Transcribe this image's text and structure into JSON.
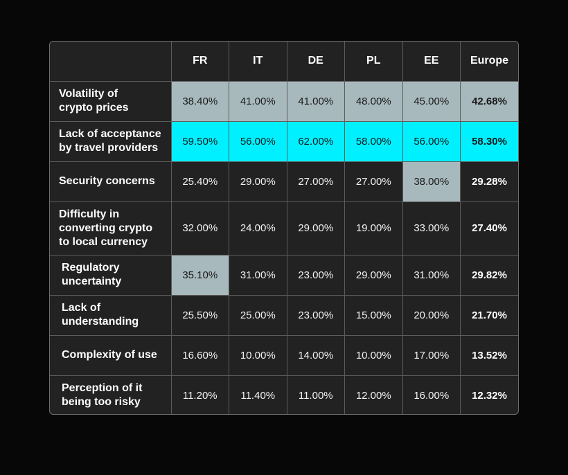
{
  "chart_data": {
    "type": "table",
    "columns": [
      "",
      "FR",
      "IT",
      "DE",
      "PL",
      "EE",
      "Europe"
    ],
    "rows": [
      {
        "label": "Volatility of crypto prices",
        "values": [
          "38.40%",
          "41.00%",
          "41.00%",
          "48.00%",
          "45.00%",
          "42.68%"
        ],
        "highlight": [
          "gray",
          "gray",
          "gray",
          "gray",
          "gray",
          "gray"
        ],
        "indent": false
      },
      {
        "label": "Lack of acceptance by travel providers",
        "values": [
          "59.50%",
          "56.00%",
          "62.00%",
          "58.00%",
          "56.00%",
          "58.30%"
        ],
        "highlight": [
          "cyan",
          "cyan",
          "cyan",
          "cyan",
          "cyan",
          "cyan"
        ],
        "indent": false
      },
      {
        "label": "Security concerns",
        "values": [
          "25.40%",
          "29.00%",
          "27.00%",
          "27.00%",
          "38.00%",
          "29.28%"
        ],
        "highlight": [
          "",
          "",
          "",
          "",
          "gray",
          ""
        ],
        "indent": false
      },
      {
        "label": "Difficulty in converting crypto to local currency",
        "values": [
          "32.00%",
          "24.00%",
          "29.00%",
          "19.00%",
          "33.00%",
          "27.40%"
        ],
        "highlight": [
          "",
          "",
          "",
          "",
          "",
          ""
        ],
        "indent": false
      },
      {
        "label": "Regulatory uncertainty",
        "values": [
          "35.10%",
          "31.00%",
          "23.00%",
          "29.00%",
          "31.00%",
          "29.82%"
        ],
        "highlight": [
          "gray",
          "",
          "",
          "",
          "",
          ""
        ],
        "indent": true
      },
      {
        "label": "Lack of understanding",
        "values": [
          "25.50%",
          "25.00%",
          "23.00%",
          "15.00%",
          "20.00%",
          "21.70%"
        ],
        "highlight": [
          "",
          "",
          "",
          "",
          "",
          ""
        ],
        "indent": true
      },
      {
        "label": "Complexity of use",
        "values": [
          "16.60%",
          "10.00%",
          "14.00%",
          "10.00%",
          "17.00%",
          "13.52%"
        ],
        "highlight": [
          "",
          "",
          "",
          "",
          "",
          ""
        ],
        "indent": true
      },
      {
        "label": "Perception of it being too risky",
        "values": [
          "11.20%",
          "11.40%",
          "11.00%",
          "12.00%",
          "16.00%",
          "12.32%"
        ],
        "highlight": [
          "",
          "",
          "",
          "",
          "",
          ""
        ],
        "indent": true
      }
    ],
    "colors": {
      "background": "#070707",
      "cell": "#222222",
      "highlight_gray": "#a8b9bd",
      "highlight_cyan": "#00f0ff",
      "text": "#ffffff"
    }
  }
}
